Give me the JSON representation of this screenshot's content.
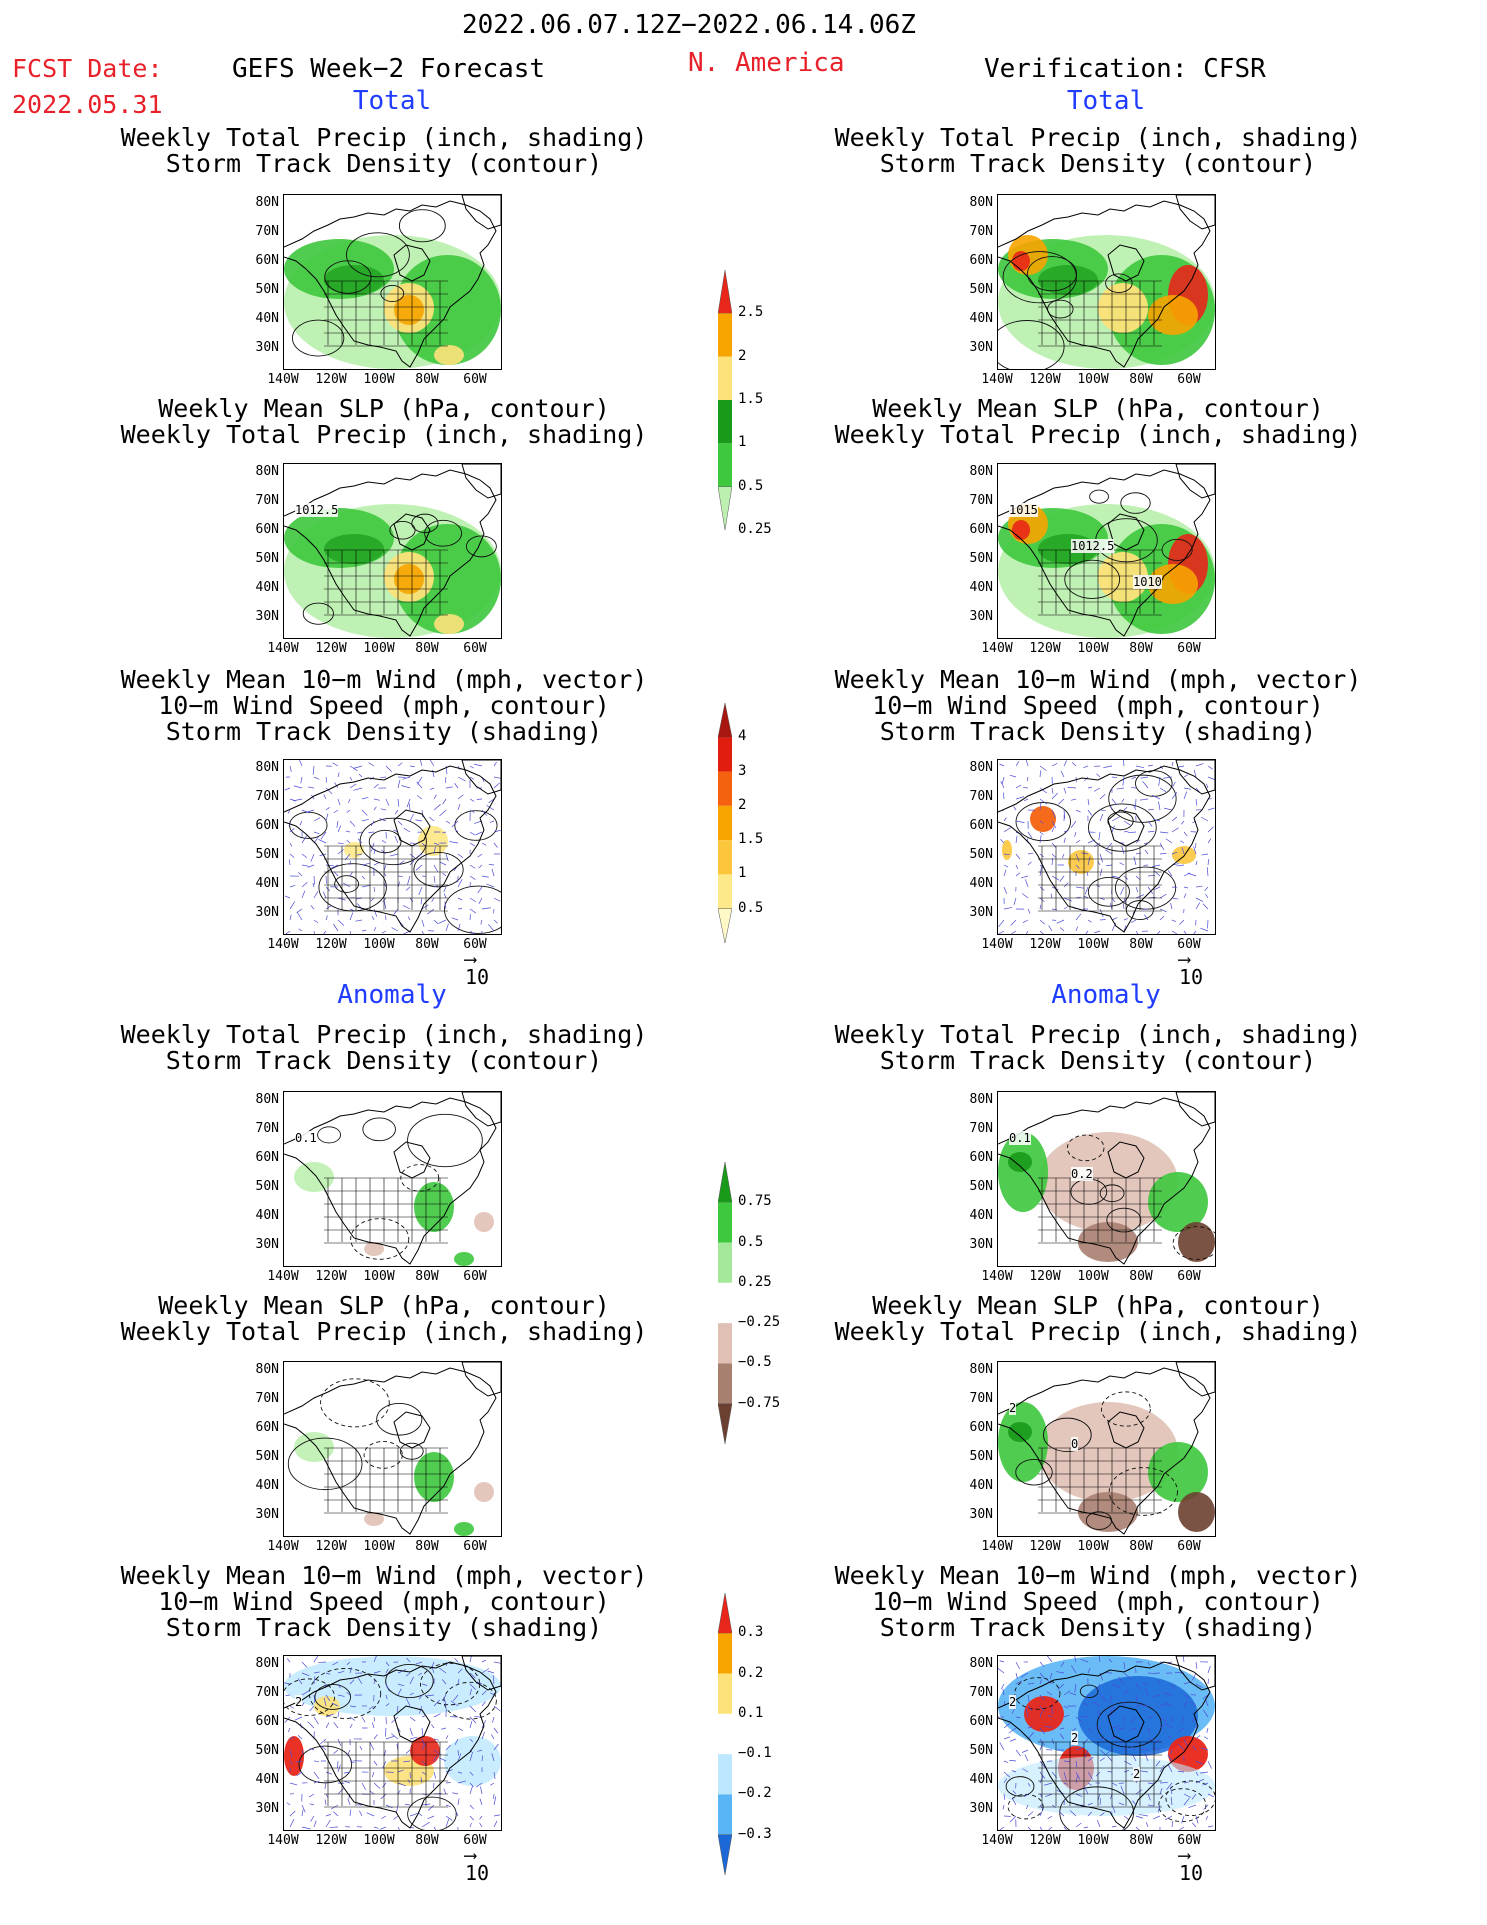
{
  "header": {
    "date_range": "2022.06.07.12Z−2022.06.14.06Z",
    "fcst_label": "FCST Date:",
    "fcst_date": "2022.05.31",
    "left_title": "GEFS Week−2 Forecast",
    "region": "N. America",
    "right_title": "Verification: CFSR"
  },
  "sections": {
    "total": "Total",
    "anomaly": "Anomaly"
  },
  "panel_titles": {
    "precip_track": [
      "Weekly Total Precip (inch, shading)",
      "Storm Track Density (contour)"
    ],
    "slp_precip": [
      "Weekly Mean SLP (hPa, contour)",
      "Weekly Total Precip (inch, shading)"
    ],
    "wind_track": [
      "Weekly Mean 10−m Wind (mph, vector)",
      "10−m Wind Speed (mph, contour)",
      "Storm Track Density (shading)"
    ]
  },
  "axes": {
    "lat_labels": [
      "80N",
      "70N",
      "60N",
      "50N",
      "40N",
      "30N"
    ],
    "lon_labels": [
      "140W",
      "120W",
      "100W",
      "80W",
      "60W"
    ]
  },
  "vector_ref": "10",
  "contour_labels": {
    "fcst_slp_total": [
      "1012.5"
    ],
    "obs_slp_total": [
      "1015",
      "1012.5",
      "1010"
    ],
    "fcst_precip_anom": [
      "0.1"
    ],
    "obs_precip_anom": [
      "0.1",
      "0.2"
    ],
    "obs_slp_anom": [
      "2",
      "0"
    ],
    "fcst_wind_anom": [
      "2"
    ],
    "obs_wind_anom": [
      "2",
      "2",
      "2"
    ]
  },
  "colorbars": [
    {
      "name": "total-precip",
      "labels": [
        "2.5",
        "2",
        "1.5",
        "1",
        "0.5",
        "0.25"
      ],
      "colors": [
        "#e8261a",
        "#f7a400",
        "#fde27a",
        "#1a9a1a",
        "#3dc83d",
        "#bdf0b0"
      ]
    },
    {
      "name": "storm-track-density",
      "labels": [
        "4",
        "3",
        "2",
        "1.5",
        "1",
        "0.5"
      ],
      "colors": [
        "#a8170f",
        "#e11d10",
        "#f4620f",
        "#f7a400",
        "#fbc63c",
        "#fde98a",
        "#fff9c8"
      ]
    },
    {
      "name": "precip-anomaly",
      "labels": [
        "0.75",
        "0.5",
        "0.25",
        "−0.25",
        "−0.5",
        "−0.75"
      ],
      "colors": [
        "#1a9a1a",
        "#3dc83d",
        "#a6e89a",
        "#ffffff",
        "#e0c0b5",
        "#a88070",
        "#6b4030"
      ]
    },
    {
      "name": "track-anomaly",
      "labels": [
        "0.3",
        "0.2",
        "0.1",
        "−0.1",
        "−0.2",
        "−0.3"
      ],
      "colors": [
        "#e8261a",
        "#f7a400",
        "#fde27a",
        "#ffffff",
        "#bde7ff",
        "#59b5f5",
        "#1b68d8"
      ]
    }
  ]
}
